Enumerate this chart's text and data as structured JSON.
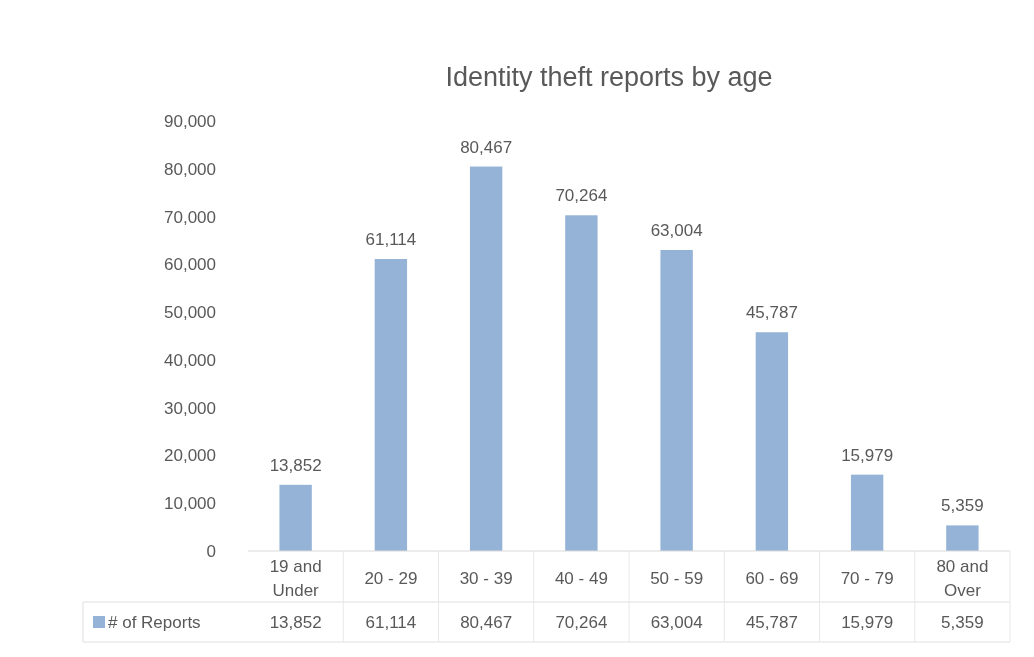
{
  "chart_data": {
    "type": "bar",
    "title": "Identity theft reports by age",
    "categories": [
      "19 and Under",
      "20 - 29",
      "30 - 39",
      "40 - 49",
      "50 - 59",
      "60 - 69",
      "70 - 79",
      "80 and Over"
    ],
    "series": [
      {
        "name": "# of Reports",
        "color": "#95b3d7",
        "values": [
          13852,
          61114,
          80467,
          70264,
          63004,
          45787,
          15979,
          5359
        ],
        "value_labels": [
          "13,852",
          "61,114",
          "80,467",
          "70,264",
          "63,004",
          "45,787",
          "15,979",
          "5,359"
        ]
      }
    ],
    "ylim": [
      0,
      90000
    ],
    "yticks": [
      {
        "value": 0,
        "label": "0"
      },
      {
        "value": 10000,
        "label": "10,000"
      },
      {
        "value": 20000,
        "label": "20,000"
      },
      {
        "value": 30000,
        "label": "30,000"
      },
      {
        "value": 40000,
        "label": "40,000"
      },
      {
        "value": 50000,
        "label": "50,000"
      },
      {
        "value": 60000,
        "label": "60,000"
      },
      {
        "value": 70000,
        "label": "70,000"
      },
      {
        "value": 80000,
        "label": "80,000"
      },
      {
        "value": 90000,
        "label": "90,000"
      }
    ],
    "legend": "bottom"
  }
}
